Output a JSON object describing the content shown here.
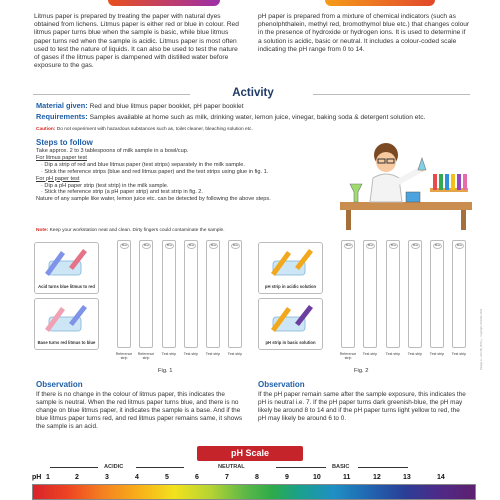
{
  "intro": {
    "left": "Litmus paper is prepared by treating the paper with natural dyes obtained from lichens. Litmus paper is either red or blue in colour. Red litmus paper turns blue when the sample is basic, while blue litmus paper turns red when the sample is acidic. Litmus paper is most often used to test the nature of liquids. It can also be used to test the nature of gases if the litmus paper is dampened with distilled water before exposure to the gas.",
    "right": "pH paper is prepared from a mixture of chemical indicators (such as phenolphthalein, methyl red, bromothymol blue etc.) that changes colour in the presence of hydroxide or hydrogen ions. It is used to determine if a solution is acidic, basic or neutral. It includes a colour-coded scale indicating the pH range from 0 to 14."
  },
  "activity": {
    "title": "Activity",
    "material_label": "Material given:",
    "material_text": "Red and blue litmus paper booklet, pH paper booklet",
    "requirements_label": "Requirements:",
    "requirements_text": "Samples available at home such as milk, drinking water, lemon juice, vinegar, baking soda & detergent solution etc.",
    "caution_label": "Caution:",
    "caution_text": "Do not experiment with hazardous substances such as, toilet cleaner, bleaching solution etc."
  },
  "steps": {
    "title": "Steps to follow",
    "intro": "Take approx. 2 to 3 tablespoons of milk sample in a bowl/cup.",
    "litmus_head": "For litmus paper test",
    "litmus_1": "· Dip a strip of red and blue litmus paper (test strips) separately in the milk sample.",
    "litmus_2": "· Stick the reference strips (blue and red litmus paper) and the test strips using glue in fig. 1.",
    "ph_head": "For pH paper test",
    "ph_1": "· Dip a pH paper strip (test strip) in the milk sample.",
    "ph_2": "· Stick the reference strip (a pH paper strip) and test strip in fig. 2.",
    "nature": "Nature of any sample like water, lemon juice etc. can be detected by following the above steps.",
    "note_label": "Note:",
    "note_text": "Keep your workstation neat and clean. Dirty fingers could contaminate the sample."
  },
  "fig1": {
    "card_top": "Acid turns blue litmus to red",
    "card_bottom": "Base turns red litmus to blue",
    "strip_cap": "Blue",
    "labels": [
      "Reference strip",
      "Reference strip",
      "Test strip",
      "Test strip",
      "Test strip",
      "Test strip"
    ],
    "caption": "Fig. 1"
  },
  "fig2": {
    "card_top": "pH strip in acidic solution",
    "card_bottom": "pH strip in basic solution",
    "strip_cap": "Blue",
    "labels": [
      "Reference strip",
      "Test strip",
      "Test strip",
      "Test strip",
      "Test strip",
      "Test strip"
    ],
    "caption": "Fig. 2"
  },
  "observation": {
    "title_left": "Observation",
    "text_left": "If there is no change in the colour of litmus paper, this indicates the sample is neutral. When the red litmus paper turns blue, and there is no change on blue litmus paper, it indicates the sample is a base. And if the blue litmus paper turns red, and red litmus paper remains same, it shows the sample is an acid.",
    "title_right": "Observation",
    "text_right": "If the pH paper remain same after the sample exposure, this indicates the pH is neutral i.e. 7. If the pH paper turns dark greenish-blue, the pH may likely be around 8 to 14 and if the pH paper turns light yellow to red, the pH may likely be around 6 to 0."
  },
  "side_note": "Design no. UFC1B_0001 © Copyright UNICEF 2021",
  "ph_scale": {
    "title": "pH Scale",
    "acidic": "ACIDIC",
    "neutral": "NEUTRAL",
    "basic": "BASIC",
    "ph_label": "pH",
    "numbers": [
      "1",
      "2",
      "3",
      "4",
      "5",
      "6",
      "7",
      "8",
      "9",
      "10",
      "11",
      "12",
      "13",
      "14"
    ]
  },
  "colors": {
    "heading_blue": "#1f5fa8",
    "title_navy": "#1f3a66",
    "caution_red": "#d6261f",
    "banner_red": "#c6242b"
  }
}
